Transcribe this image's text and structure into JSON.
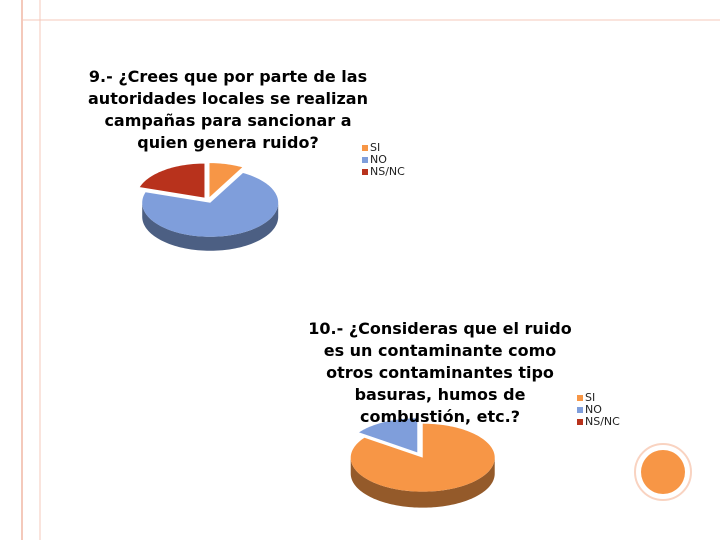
{
  "chart_data": [
    {
      "type": "pie",
      "title": "9.- ¿Crees que por parte de las autoridades locales se realizan campañas para sancionar a quien genera ruido?",
      "categories": [
        "SI",
        "NO",
        "NS/NC"
      ],
      "values": [
        8,
        72,
        20
      ],
      "colors": [
        "#f79646",
        "#7f9edb",
        "#b8321c"
      ],
      "legend": "right"
    },
    {
      "type": "pie",
      "title": "10.- ¿Consideras que el ruido es un contaminante como otros contaminantes tipo basuras, humos de combustión, etc.?",
      "categories": [
        "SI",
        "NO",
        "NS/NC"
      ],
      "values": [
        85,
        15,
        0
      ],
      "colors": [
        "#f79646",
        "#7f9edb",
        "#b8321c"
      ],
      "legend": "right"
    }
  ]
}
